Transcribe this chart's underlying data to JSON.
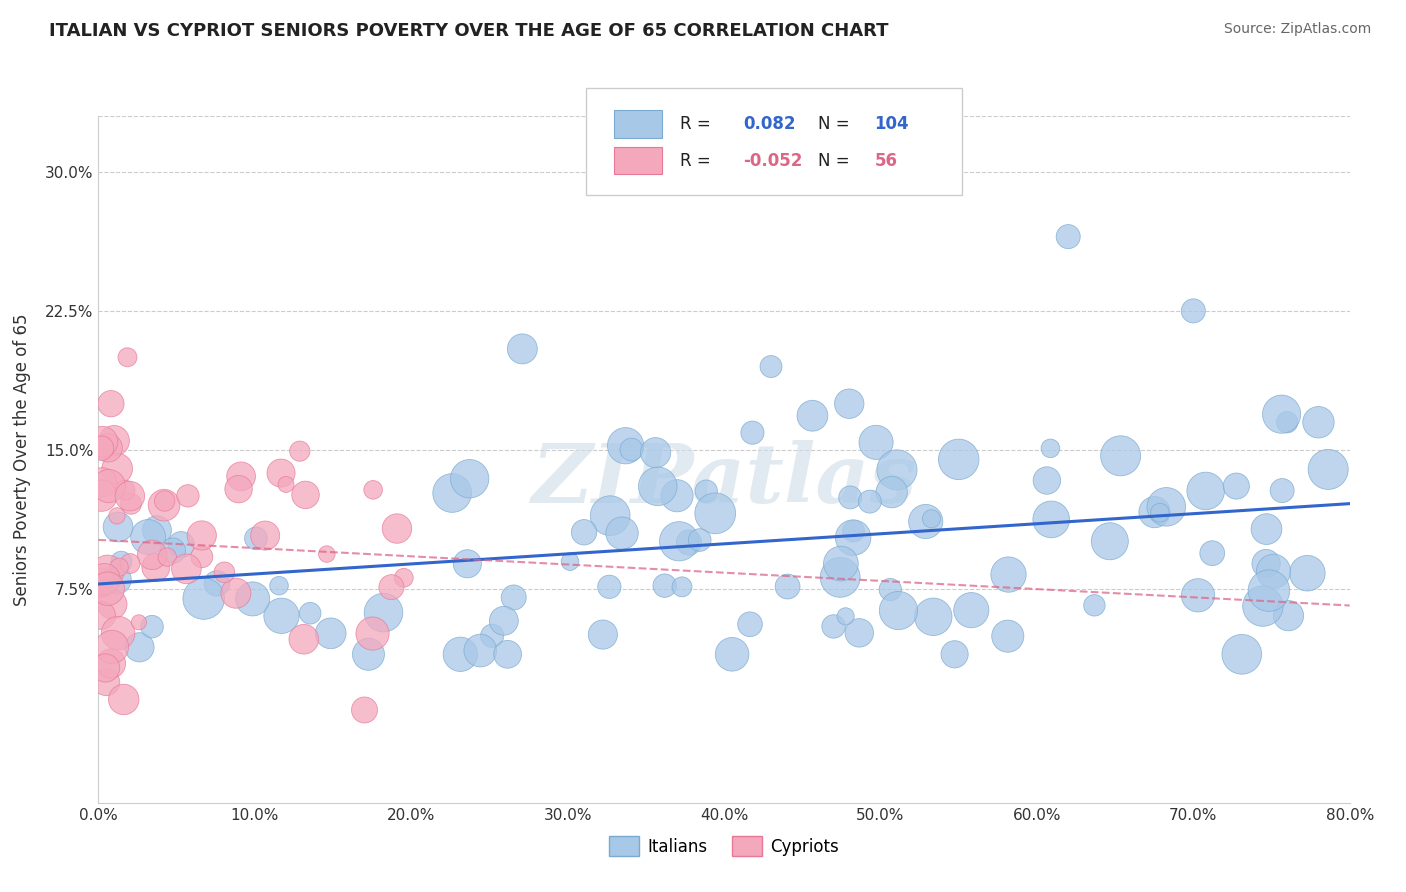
{
  "title": "ITALIAN VS CYPRIOT SENIORS POVERTY OVER THE AGE OF 65 CORRELATION CHART",
  "source": "Source: ZipAtlas.com",
  "ylabel": "Seniors Poverty Over the Age of 65",
  "xlim": [
    0.0,
    0.8
  ],
  "ylim": [
    -0.04,
    0.33
  ],
  "xticks": [
    0.0,
    0.1,
    0.2,
    0.3,
    0.4,
    0.5,
    0.6,
    0.7,
    0.8
  ],
  "xticklabels": [
    "0.0%",
    "10.0%",
    "20.0%",
    "30.0%",
    "40.0%",
    "50.0%",
    "60.0%",
    "70.0%",
    "80.0%"
  ],
  "yticks": [
    0.075,
    0.15,
    0.225,
    0.3
  ],
  "yticklabels": [
    "7.5%",
    "15.0%",
    "22.5%",
    "30.0%"
  ],
  "italian_color": "#a8c8e8",
  "cypriot_color": "#f4a8bc",
  "italian_edge": "#7aaad0",
  "cypriot_edge": "#e87898",
  "trend_italian_color": "#3366cc",
  "trend_cypriot_color": "#dd6688",
  "R_italian": 0.082,
  "N_italian": 104,
  "R_cypriot": -0.052,
  "N_cypriot": 56,
  "legend_labels": [
    "Italians",
    "Cypriots"
  ],
  "watermark": "ZIPatlas",
  "background_color": "#ffffff",
  "grid_color": "#cccccc"
}
